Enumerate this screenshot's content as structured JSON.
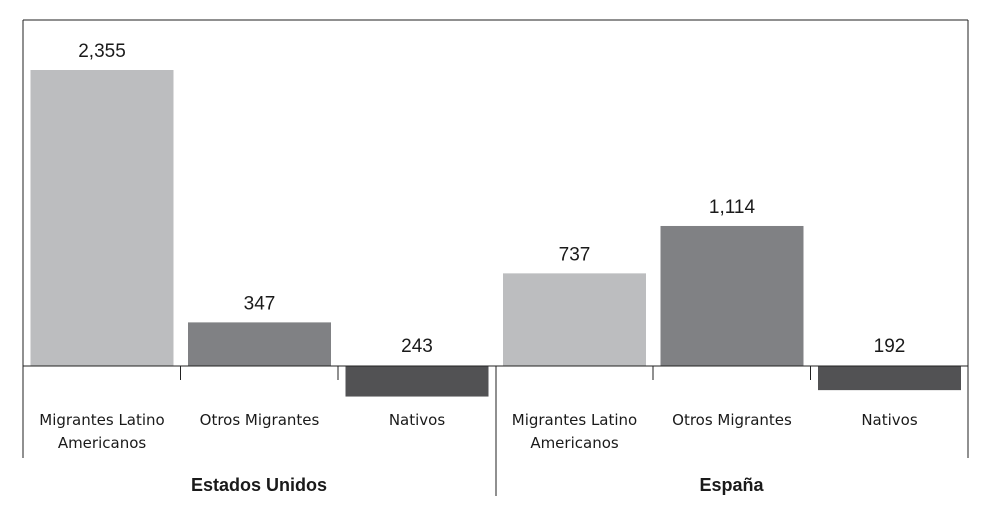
{
  "chart_data": {
    "type": "bar",
    "title": "",
    "xlabel": "",
    "ylabel": "",
    "grid": false,
    "groups": [
      {
        "name": "Estados Unidos",
        "categories": [
          [
            "Migrantes Latino",
            "Americanos"
          ],
          [
            "Otros Migrantes"
          ],
          [
            "Nativos"
          ]
        ],
        "values": [
          2355,
          347,
          -243
        ],
        "labels": [
          "2,355",
          "347",
          "243"
        ]
      },
      {
        "name": "España",
        "categories": [
          [
            "Migrantes Latino",
            "Americanos"
          ],
          [
            "Otros Migrantes"
          ],
          [
            "Nativos"
          ]
        ],
        "values": [
          737,
          1114,
          -192
        ],
        "labels": [
          "737",
          "1,114",
          "192"
        ]
      }
    ],
    "ylim": [
      -700,
      2700
    ],
    "colors": [
      "#bcbdbf",
      "#808184",
      "#525254"
    ]
  }
}
